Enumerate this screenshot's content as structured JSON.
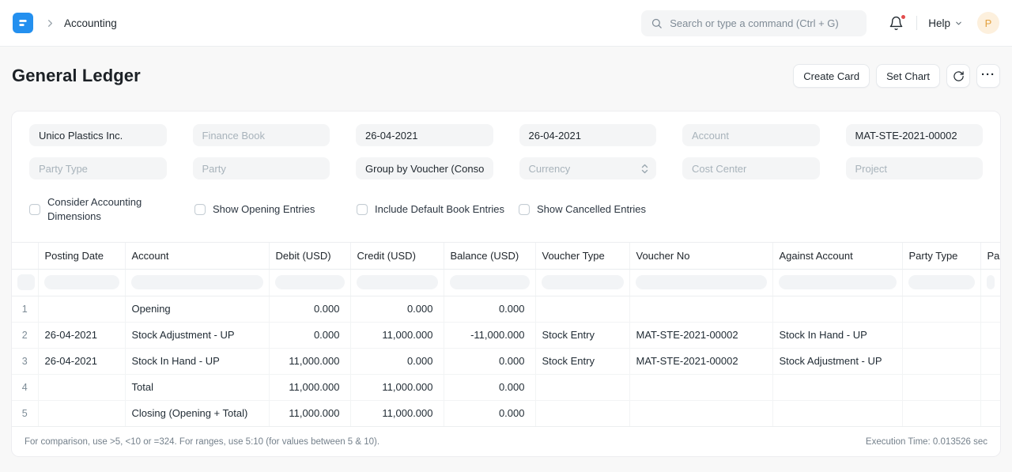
{
  "colors": {
    "brand_blue": "#2490ef",
    "notification_dot": "#e24c4c",
    "avatar_bg": "#fdf0dd",
    "avatar_text": "#e2a03f"
  },
  "icons": {
    "logo": "erpnext-logo",
    "breadcrumb_chevron": "chevron-right",
    "search": "search",
    "notifications": "bell",
    "help_chevron": "chevron-down",
    "refresh": "refresh",
    "menu": "ellipsis-horizontal",
    "select": "up-down-arrows"
  },
  "navbar": {
    "breadcrumb": "Accounting",
    "search_placeholder": "Search or type a command (Ctrl + G)",
    "help_label": "Help",
    "avatar_initial": "P"
  },
  "page_head": {
    "title": "General Ledger",
    "create_card_label": "Create Card",
    "set_chart_label": "Set Chart"
  },
  "filters": {
    "inputs": [
      {
        "id": "company",
        "value": "Unico Plastics Inc."
      },
      {
        "id": "finance-book",
        "placeholder": "Finance Book"
      },
      {
        "id": "from-date",
        "value": "26-04-2021"
      },
      {
        "id": "to-date",
        "value": "26-04-2021"
      },
      {
        "id": "account",
        "placeholder": "Account"
      },
      {
        "id": "voucher-no",
        "value": "MAT-STE-2021-00002"
      },
      {
        "id": "party-type",
        "placeholder": "Party Type"
      },
      {
        "id": "party",
        "placeholder": "Party"
      },
      {
        "id": "group-by",
        "value": "Group by Voucher (Consol"
      },
      {
        "id": "currency",
        "placeholder": "Currency",
        "arrows": true
      },
      {
        "id": "cost-center",
        "placeholder": "Cost Center"
      },
      {
        "id": "project",
        "placeholder": "Project"
      }
    ],
    "checkboxes": [
      {
        "id": "consider-accounting-dimensions",
        "label": "Consider Accounting Dimensions",
        "checked": false
      },
      {
        "id": "show-opening-entries",
        "label": "Show Opening Entries",
        "checked": false
      },
      {
        "id": "include-default-book-entries",
        "label": "Include Default Book Entries",
        "checked": false
      },
      {
        "id": "show-cancelled-entries",
        "label": "Show Cancelled Entries",
        "checked": false
      }
    ]
  },
  "table": {
    "columns": [
      {
        "id": "index",
        "label": ""
      },
      {
        "id": "posting-date",
        "label": "Posting Date"
      },
      {
        "id": "account",
        "label": "Account"
      },
      {
        "id": "debit",
        "label": "Debit (USD)"
      },
      {
        "id": "credit",
        "label": "Credit (USD)"
      },
      {
        "id": "balance",
        "label": "Balance (USD)"
      },
      {
        "id": "voucher-type",
        "label": "Voucher Type"
      },
      {
        "id": "voucher-no",
        "label": "Voucher No"
      },
      {
        "id": "against-account",
        "label": "Against Account"
      },
      {
        "id": "party-type",
        "label": "Party Type"
      },
      {
        "id": "party",
        "label": "Pa"
      }
    ],
    "rows": [
      {
        "idx": "1",
        "cells": [
          "",
          "Opening",
          "0.000",
          "0.000",
          "0.000",
          "",
          "",
          "",
          "",
          ""
        ]
      },
      {
        "idx": "2",
        "cells": [
          "26-04-2021",
          "Stock Adjustment - UP",
          "0.000",
          "11,000.000",
          "-11,000.000",
          "Stock Entry",
          "MAT-STE-2021-00002",
          "Stock In Hand - UP",
          "",
          ""
        ]
      },
      {
        "idx": "3",
        "cells": [
          "26-04-2021",
          "Stock In Hand - UP",
          "11,000.000",
          "0.000",
          "0.000",
          "Stock Entry",
          "MAT-STE-2021-00002",
          "Stock Adjustment - UP",
          "",
          ""
        ]
      },
      {
        "idx": "4",
        "cells": [
          "",
          "Total",
          "11,000.000",
          "11,000.000",
          "0.000",
          "",
          "",
          "",
          "",
          ""
        ]
      },
      {
        "idx": "5",
        "cells": [
          "",
          "Closing (Opening + Total)",
          "11,000.000",
          "11,000.000",
          "0.000",
          "",
          "",
          "",
          "",
          ""
        ]
      }
    ]
  },
  "footer": {
    "hint": "For comparison, use >5, <10 or =324. For ranges, use 5:10 (for values between 5 & 10).",
    "execution_time": "Execution Time: 0.013526 sec"
  }
}
